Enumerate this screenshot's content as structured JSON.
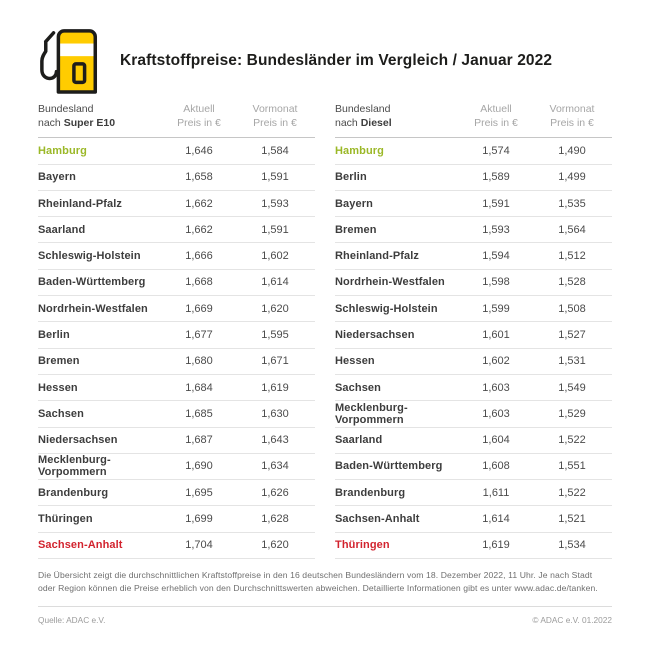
{
  "header": {
    "title": "Kraftstoffpreise: Bundesländer im Vergleich / Januar 2022",
    "icon": "fuel-pump-icon"
  },
  "colors": {
    "brand_yellow": "#FFCC00",
    "best_price_green": "#9BB827",
    "worst_price_red": "#D2232E"
  },
  "tables": [
    {
      "id": "super-e10",
      "header": {
        "col1_line1": "Bundesland",
        "col1_line2_prefix": "nach ",
        "col1_line2_bold": "Super E10",
        "col2_line1": "Aktuell",
        "col2_line2": "Preis in €",
        "col3_line1": "Vormonat",
        "col3_line2": "Preis in €"
      },
      "rows": [
        {
          "state": "Hamburg",
          "current": "1,646",
          "previous": "1,584",
          "highlight": "best"
        },
        {
          "state": "Bayern",
          "current": "1,658",
          "previous": "1,591",
          "highlight": null
        },
        {
          "state": "Rheinland-Pfalz",
          "current": "1,662",
          "previous": "1,593",
          "highlight": null
        },
        {
          "state": "Saarland",
          "current": "1,662",
          "previous": "1,591",
          "highlight": null
        },
        {
          "state": "Schleswig-Holstein",
          "current": "1,666",
          "previous": "1,602",
          "highlight": null
        },
        {
          "state": "Baden-Württemberg",
          "current": "1,668",
          "previous": "1,614",
          "highlight": null
        },
        {
          "state": "Nordrhein-Westfalen",
          "current": "1,669",
          "previous": "1,620",
          "highlight": null
        },
        {
          "state": "Berlin",
          "current": "1,677",
          "previous": "1,595",
          "highlight": null
        },
        {
          "state": "Bremen",
          "current": "1,680",
          "previous": "1,671",
          "highlight": null
        },
        {
          "state": "Hessen",
          "current": "1,684",
          "previous": "1,619",
          "highlight": null
        },
        {
          "state": "Sachsen",
          "current": "1,685",
          "previous": "1,630",
          "highlight": null
        },
        {
          "state": "Niedersachsen",
          "current": "1,687",
          "previous": "1,643",
          "highlight": null
        },
        {
          "state": "Mecklenburg-Vorpommern",
          "current": "1,690",
          "previous": "1,634",
          "highlight": null
        },
        {
          "state": "Brandenburg",
          "current": "1,695",
          "previous": "1,626",
          "highlight": null
        },
        {
          "state": "Thüringen",
          "current": "1,699",
          "previous": "1,628",
          "highlight": null
        },
        {
          "state": "Sachsen-Anhalt",
          "current": "1,704",
          "previous": "1,620",
          "highlight": "worst"
        }
      ]
    },
    {
      "id": "diesel",
      "header": {
        "col1_line1": "Bundesland",
        "col1_line2_prefix": "nach ",
        "col1_line2_bold": "Diesel",
        "col2_line1": "Aktuell",
        "col2_line2": "Preis in €",
        "col3_line1": "Vormonat",
        "col3_line2": "Preis in €"
      },
      "rows": [
        {
          "state": "Hamburg",
          "current": "1,574",
          "previous": "1,490",
          "highlight": "best"
        },
        {
          "state": "Berlin",
          "current": "1,589",
          "previous": "1,499",
          "highlight": null
        },
        {
          "state": "Bayern",
          "current": "1,591",
          "previous": "1,535",
          "highlight": null
        },
        {
          "state": "Bremen",
          "current": "1,593",
          "previous": "1,564",
          "highlight": null
        },
        {
          "state": "Rheinland-Pfalz",
          "current": "1,594",
          "previous": "1,512",
          "highlight": null
        },
        {
          "state": "Nordrhein-Westfalen",
          "current": "1,598",
          "previous": "1,528",
          "highlight": null
        },
        {
          "state": "Schleswig-Holstein",
          "current": "1,599",
          "previous": "1,508",
          "highlight": null
        },
        {
          "state": "Niedersachsen",
          "current": "1,601",
          "previous": "1,527",
          "highlight": null
        },
        {
          "state": "Hessen",
          "current": "1,602",
          "previous": "1,531",
          "highlight": null
        },
        {
          "state": "Sachsen",
          "current": "1,603",
          "previous": "1,549",
          "highlight": null
        },
        {
          "state": "Mecklenburg-Vorpommern",
          "current": "1,603",
          "previous": "1,529",
          "highlight": null
        },
        {
          "state": "Saarland",
          "current": "1,604",
          "previous": "1,522",
          "highlight": null
        },
        {
          "state": "Baden-Württemberg",
          "current": "1,608",
          "previous": "1,551",
          "highlight": null
        },
        {
          "state": "Brandenburg",
          "current": "1,611",
          "previous": "1,522",
          "highlight": null
        },
        {
          "state": "Sachsen-Anhalt",
          "current": "1,614",
          "previous": "1,521",
          "highlight": null
        },
        {
          "state": "Thüringen",
          "current": "1,619",
          "previous": "1,534",
          "highlight": "worst"
        }
      ]
    }
  ],
  "footnote": {
    "text": "Die Übersicht zeigt die durchschnittlichen Kraftstoffpreise in den 16 deutschen Bundesländern vom 18. Dezember 2022, 11 Uhr. Je nach Stadt oder Region können die Preise erheblich von den Durchschnittswerten abweichen. Detaillierte Informationen gibt es unter www.adac.de/tanken."
  },
  "footer": {
    "source": "Quelle: ADAC e.V.",
    "copyright": "© ADAC e.V. 01.2022"
  },
  "chart_data": [
    {
      "type": "table",
      "title": "Kraftstoffpreise Bundesländer Januar 2022 – Super E10",
      "columns": [
        "Bundesland",
        "Aktuell Preis in €",
        "Vormonat Preis in €"
      ],
      "rows": [
        [
          "Hamburg",
          1.646,
          1.584
        ],
        [
          "Bayern",
          1.658,
          1.591
        ],
        [
          "Rheinland-Pfalz",
          1.662,
          1.593
        ],
        [
          "Saarland",
          1.662,
          1.591
        ],
        [
          "Schleswig-Holstein",
          1.666,
          1.602
        ],
        [
          "Baden-Württemberg",
          1.668,
          1.614
        ],
        [
          "Nordrhein-Westfalen",
          1.669,
          1.62
        ],
        [
          "Berlin",
          1.677,
          1.595
        ],
        [
          "Bremen",
          1.68,
          1.671
        ],
        [
          "Hessen",
          1.684,
          1.619
        ],
        [
          "Sachsen",
          1.685,
          1.63
        ],
        [
          "Niedersachsen",
          1.687,
          1.643
        ],
        [
          "Mecklenburg-Vorpommern",
          1.69,
          1.634
        ],
        [
          "Brandenburg",
          1.695,
          1.626
        ],
        [
          "Thüringen",
          1.699,
          1.628
        ],
        [
          "Sachsen-Anhalt",
          1.704,
          1.62
        ]
      ],
      "annotations": {
        "cheapest": "Hamburg",
        "most_expensive": "Sachsen-Anhalt"
      }
    },
    {
      "type": "table",
      "title": "Kraftstoffpreise Bundesländer Januar 2022 – Diesel",
      "columns": [
        "Bundesland",
        "Aktuell Preis in €",
        "Vormonat Preis in €"
      ],
      "rows": [
        [
          "Hamburg",
          1.574,
          1.49
        ],
        [
          "Berlin",
          1.589,
          1.499
        ],
        [
          "Bayern",
          1.591,
          1.535
        ],
        [
          "Bremen",
          1.593,
          1.564
        ],
        [
          "Rheinland-Pfalz",
          1.594,
          1.512
        ],
        [
          "Nordrhein-Westfalen",
          1.598,
          1.528
        ],
        [
          "Schleswig-Holstein",
          1.599,
          1.508
        ],
        [
          "Niedersachsen",
          1.601,
          1.527
        ],
        [
          "Hessen",
          1.602,
          1.531
        ],
        [
          "Sachsen",
          1.603,
          1.549
        ],
        [
          "Mecklenburg-Vorpommern",
          1.603,
          1.529
        ],
        [
          "Saarland",
          1.604,
          1.522
        ],
        [
          "Baden-Württemberg",
          1.608,
          1.551
        ],
        [
          "Brandenburg",
          1.611,
          1.522
        ],
        [
          "Sachsen-Anhalt",
          1.614,
          1.521
        ],
        [
          "Thüringen",
          1.619,
          1.534
        ]
      ],
      "annotations": {
        "cheapest": "Hamburg",
        "most_expensive": "Thüringen"
      }
    }
  ]
}
